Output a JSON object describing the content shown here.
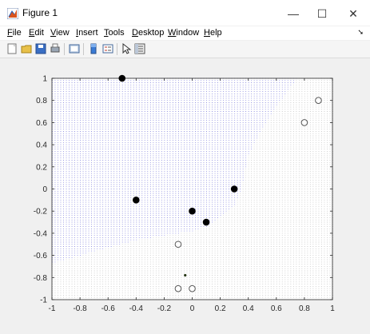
{
  "window": {
    "title": "Figure 1",
    "minimize_glyph": "—",
    "maximize_glyph": "☐",
    "close_glyph": "✕"
  },
  "menu": [
    {
      "label": "File",
      "u": "F",
      "rest": "ile"
    },
    {
      "label": "Edit",
      "u": "E",
      "rest": "dit"
    },
    {
      "label": "View",
      "u": "V",
      "rest": "iew"
    },
    {
      "label": "Insert",
      "u": "I",
      "rest": "nsert"
    },
    {
      "label": "Tools",
      "u": "T",
      "rest": "ools"
    },
    {
      "label": "Desktop",
      "u": "D",
      "rest": "esktop"
    },
    {
      "label": "Window",
      "u": "W",
      "rest": "indow"
    },
    {
      "label": "Help",
      "u": "H",
      "rest": "elp"
    }
  ],
  "toolbar_icons": [
    "new-figure-icon",
    "open-file-icon",
    "save-icon",
    "print-icon",
    "link-plot-icon",
    "insert-colorbar-icon",
    "insert-legend-icon",
    "edit-plot-icon",
    "property-inspector-icon"
  ],
  "chart_data": {
    "type": "scatter",
    "xlim": [
      -1,
      1
    ],
    "ylim": [
      -1,
      1
    ],
    "xticks": [
      "-1",
      "-0.8",
      "-0.6",
      "-0.4",
      "-0.2",
      "0",
      "0.2",
      "0.4",
      "0.6",
      "0.8",
      "1"
    ],
    "yticks": [
      "-1",
      "-0.8",
      "-0.6",
      "-0.4",
      "-0.2",
      "0",
      "0.2",
      "0.4",
      "0.6",
      "0.8",
      "1"
    ],
    "grid": false,
    "background_dots": {
      "spacing": 0.02,
      "class_a_color": "#6b6bd6",
      "class_b_color": "#9a9a9a",
      "boundary_polyline": [
        [
          -1,
          -0.67
        ],
        [
          -0.8,
          -0.6
        ],
        [
          -0.6,
          -0.53
        ],
        [
          -0.4,
          -0.46
        ],
        [
          -0.2,
          -0.42
        ],
        [
          0,
          -0.38
        ],
        [
          0.1,
          -0.34
        ],
        [
          0.2,
          -0.26
        ],
        [
          0.3,
          -0.15
        ],
        [
          0.35,
          0.0
        ],
        [
          0.4,
          0.3
        ],
        [
          0.5,
          0.55
        ],
        [
          0.6,
          0.75
        ],
        [
          0.7,
          0.92
        ],
        [
          0.75,
          1.0
        ]
      ]
    },
    "series": [
      {
        "marker": "filled-circle",
        "color": "#000000",
        "points": [
          [
            -0.5,
            1.0
          ],
          [
            -0.4,
            -0.1
          ],
          [
            0.0,
            -0.2
          ],
          [
            0.1,
            -0.3
          ],
          [
            0.3,
            0.0
          ]
        ]
      },
      {
        "marker": "open-circle",
        "color": "#555555",
        "points": [
          [
            0.9,
            0.8
          ],
          [
            0.8,
            0.6
          ],
          [
            -0.1,
            -0.5
          ],
          [
            -0.1,
            -0.9
          ],
          [
            0.0,
            -0.9
          ]
        ]
      },
      {
        "marker": "small-dot",
        "color": "#2a3a1a",
        "points": [
          [
            -0.05,
            -0.78
          ]
        ]
      }
    ]
  }
}
